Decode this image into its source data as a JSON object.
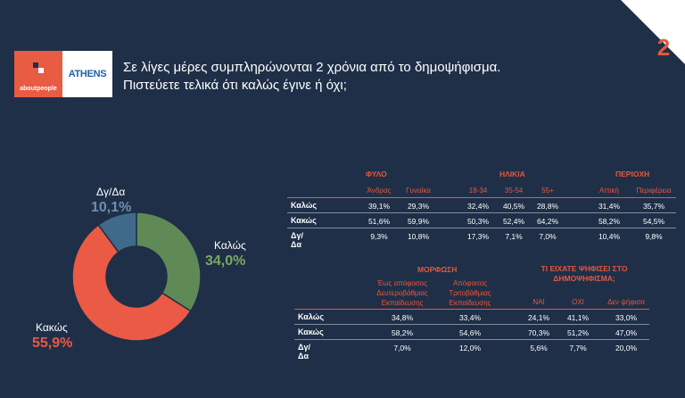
{
  "brand": {
    "logo_left": "aboutpeople",
    "logo_right": "ATHENS"
  },
  "question": {
    "line1": "Σε λίγες μέρες συμπληρώνονται 2 χρόνια από το δημοψήφισμα.",
    "line2": "Πιστεύετε τελικά ότι καλώς έγινε ή όχι;"
  },
  "slide_number": "2",
  "colors": {
    "accent": "#e8573b",
    "kalos": "#5f8a56",
    "kakos": "#ea5a44",
    "dgda": "#3f6a8a",
    "background": "#1f2f48"
  },
  "chart_data": [
    {
      "type": "pie",
      "categories": [
        "Καλώς",
        "Κακώς",
        "Δγ/Δα"
      ],
      "values": [
        34.0,
        55.9,
        10.1
      ],
      "labels": [
        "34,0%",
        "55,9%",
        "10,1%"
      ]
    },
    {
      "type": "table",
      "groups": [
        {
          "name": "ΦΥΛΟ",
          "columns": [
            "Άνδρας",
            "Γυναίκα"
          ]
        },
        {
          "name": "ΗΛΙΚΙΑ",
          "columns": [
            "18-34",
            "35-54",
            "55+"
          ]
        },
        {
          "name": "ΠΕΡΙΟΧΗ",
          "columns": [
            "Αττική",
            "Περιφέρεια"
          ]
        }
      ],
      "rows": [
        {
          "label": "Καλώς",
          "values": [
            "39,1%",
            "29,3%",
            "32,4%",
            "40,5%",
            "28,8%",
            "31,4%",
            "35,7%"
          ]
        },
        {
          "label": "Κακώς",
          "values": [
            "51,6%",
            "59,9%",
            "50,3%",
            "52,4%",
            "64,2%",
            "58,2%",
            "54,5%"
          ]
        },
        {
          "label": "Δγ/Δα",
          "values": [
            "9,3%",
            "10,8%",
            "17,3%",
            "7,1%",
            "7,0%",
            "10,4%",
            "9,8%"
          ]
        }
      ]
    },
    {
      "type": "table",
      "groups": [
        {
          "name": "ΜΟΡΦΩΣΗ",
          "columns": [
            "Έως απόφοιτος Δευτεροβάθμιας Εκπαίδευσης",
            "Απόφοιτος Τριτοβάθμιας Εκπαίδευσης"
          ]
        },
        {
          "name": "ΤΙ ΕΙΧΑΤΕ ΨΗΦΙΣΕΙ ΣΤΟ ΔΗΜΟΨΗΦΙΣΜΑ;",
          "columns": [
            "ΝΑΙ",
            "ΟΧΙ",
            "Δεν ψήφισα"
          ]
        }
      ],
      "rows": [
        {
          "label": "Καλώς",
          "values": [
            "34,8%",
            "33,4%",
            "24,1%",
            "41,1%",
            "33,0%"
          ]
        },
        {
          "label": "Κακώς",
          "values": [
            "58,2%",
            "54,6%",
            "70,3%",
            "51,2%",
            "47,0%"
          ]
        },
        {
          "label": "Δγ/Δα",
          "values": [
            "7,0%",
            "12,0%",
            "5,6%",
            "7,7%",
            "20,0%"
          ]
        }
      ]
    }
  ]
}
